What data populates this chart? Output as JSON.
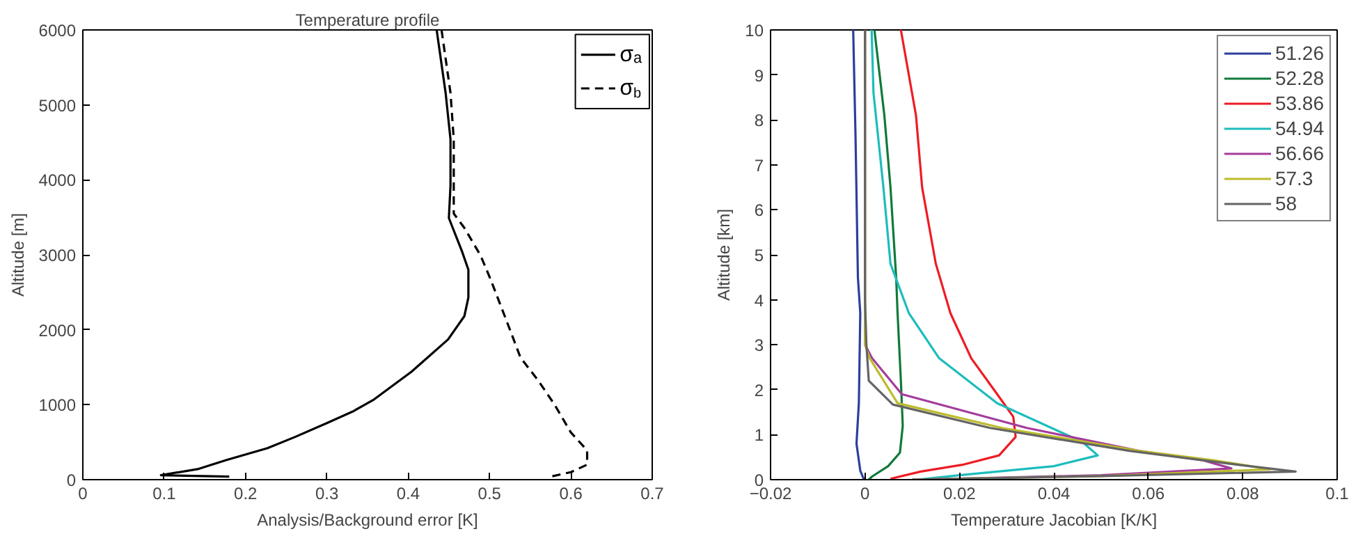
{
  "chart_data": [
    {
      "type": "line",
      "title": "Temperature profile",
      "xlabel": "Analysis/Background error [K]",
      "ylabel": "Altitude [m]",
      "xlim": [
        0,
        0.7
      ],
      "ylim": [
        0,
        6000
      ],
      "xticks": [
        0,
        0.1,
        0.2,
        0.3,
        0.4,
        0.5,
        0.6,
        0.7
      ],
      "yticks": [
        0,
        1000,
        2000,
        3000,
        4000,
        5000,
        6000
      ],
      "grid": false,
      "legend": "top right",
      "series": [
        {
          "name": "σₐ",
          "color": "#000000",
          "line_style": "solid",
          "x": [
            0.435,
            0.446,
            0.452,
            0.452,
            0.45,
            0.466,
            0.474,
            0.474,
            0.469,
            0.449,
            0.404,
            0.358,
            0.332,
            0.301,
            0.261,
            0.227,
            0.176,
            0.141,
            0.096,
            0.18
          ],
          "values": [
            6000,
            5160,
            4540,
            3920,
            3490,
            3050,
            2800,
            2430,
            2180,
            1870,
            1440,
            1070,
            910,
            760,
            570,
            420,
            260,
            140,
            60,
            40
          ]
        },
        {
          "name": "σ$_{b}$",
          "color": "#000000",
          "line_style": "dashed",
          "x": [
            0.441,
            0.452,
            0.456,
            0.456,
            0.469,
            0.489,
            0.501,
            0.523,
            0.538,
            0.56,
            0.58,
            0.6,
            0.62,
            0.62,
            0.6,
            0.575
          ],
          "values": [
            6000,
            5160,
            4540,
            3550,
            3360,
            2990,
            2680,
            2060,
            1630,
            1320,
            1000,
            630,
            390,
            200,
            100,
            40
          ]
        }
      ]
    },
    {
      "type": "line",
      "xlabel": "Temperature Jacobian [K/K]",
      "ylabel": "Altitude [km]",
      "xlim": [
        -0.02,
        0.1
      ],
      "ylim": [
        0,
        10
      ],
      "xticks": [
        {
          "value": -0.02,
          "label": "−0.02"
        },
        0,
        0.02,
        0.04,
        0.06,
        0.08,
        0.1
      ],
      "yticks": [
        0,
        1,
        2,
        3,
        4,
        5,
        6,
        7,
        8,
        9,
        10
      ],
      "grid": false,
      "legend": "top right",
      "series": [
        {
          "name": "51.26",
          "color": "#2a3f9e",
          "x": [
            -0.0025,
            -0.002,
            -0.0015,
            -0.001,
            -0.0013,
            -0.0018,
            -0.001,
            -0.0002
          ],
          "values": [
            10,
            7.6,
            4.5,
            3.7,
            1.7,
            0.8,
            0.2,
            0
          ]
        },
        {
          "name": "52.28",
          "color": "#107a3a",
          "x": [
            0.002,
            0.0041,
            0.0054,
            0.0066,
            0.0069,
            0.0076,
            0.008,
            0.0074,
            0.0049,
            0.0015,
            0.0008
          ],
          "values": [
            10,
            8.1,
            6.5,
            4.5,
            3.7,
            2.2,
            1.2,
            0.6,
            0.3,
            0.07,
            0
          ]
        },
        {
          "name": "53.86",
          "color": "#ee1c24",
          "x": [
            0.0076,
            0.0108,
            0.0121,
            0.015,
            0.0181,
            0.0225,
            0.028,
            0.0314,
            0.0319,
            0.0284,
            0.0206,
            0.0118,
            0.0054
          ],
          "values": [
            10,
            8.1,
            6.5,
            4.8,
            3.7,
            2.7,
            1.9,
            1.4,
            0.95,
            0.54,
            0.33,
            0.18,
            0.02
          ]
        },
        {
          "name": "54.94",
          "color": "#1dbcbc",
          "x": [
            0.0014,
            0.0018,
            0.0039,
            0.0054,
            0.0093,
            0.0157,
            0.028,
            0.046,
            0.0493,
            0.04,
            0.02,
            0.011
          ],
          "values": [
            10,
            8.6,
            6.5,
            4.8,
            3.7,
            2.7,
            1.7,
            0.84,
            0.54,
            0.3,
            0.1,
            0
          ]
        },
        {
          "name": "56.66",
          "color": "#a43c9c",
          "x": [
            0,
            0,
            0.0015,
            0.0078,
            0.0343,
            0.058,
            0.0716,
            0.0776,
            0.05,
            0.02,
            0.01
          ],
          "values": [
            10,
            3,
            2.7,
            1.9,
            1.15,
            0.64,
            0.43,
            0.25,
            0.1,
            0.02,
            0
          ]
        },
        {
          "name": "57.3",
          "color": "#bcbc2c",
          "x": [
            0,
            0,
            0.001,
            0.0069,
            0.029,
            0.058,
            0.074,
            0.0858,
            0.05,
            0.02,
            0.01
          ],
          "values": [
            10,
            3,
            2.7,
            1.7,
            1.15,
            0.64,
            0.43,
            0.23,
            0.08,
            0.02,
            0
          ]
        },
        {
          "name": "58",
          "color": "#646464",
          "x": [
            0,
            0,
            0.0003,
            0.0008,
            0.0059,
            0.0265,
            0.056,
            0.079,
            0.0912,
            0.05,
            0.02,
            0.01
          ],
          "values": [
            10,
            4,
            3,
            2.2,
            1.67,
            1.15,
            0.64,
            0.33,
            0.18,
            0.08,
            0.02,
            0
          ]
        }
      ]
    }
  ]
}
